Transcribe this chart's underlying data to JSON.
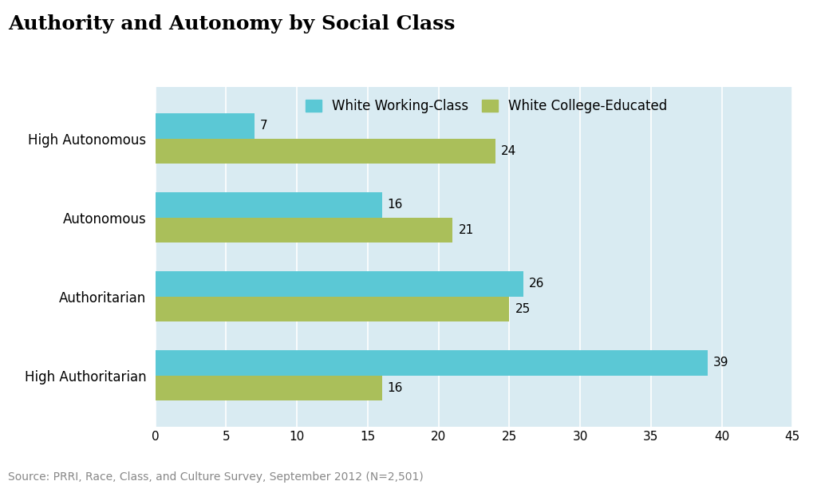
{
  "title": "Authority and Autonomy by Social Class",
  "categories": [
    "High Authoritarian",
    "Authoritarian",
    "Autonomous",
    "High Autonomous"
  ],
  "working_class_values": [
    39,
    26,
    16,
    7
  ],
  "college_educated_values": [
    16,
    25,
    21,
    24
  ],
  "working_class_color": "#5BC8D5",
  "college_educated_color": "#AABF5A",
  "background_color": "#D9EBF2",
  "plot_bg_color": "#D9EBF2",
  "legend_labels": [
    "White Working-Class",
    "White College-Educated"
  ],
  "xlim": [
    0,
    45
  ],
  "xticks": [
    0,
    5,
    10,
    15,
    20,
    25,
    30,
    35,
    40,
    45
  ],
  "source_text": "Source: PRRI, Race, Class, and Culture Survey, September 2012 (N=2,501)",
  "bar_height": 0.32,
  "title_fontsize": 18,
  "label_fontsize": 12,
  "tick_fontsize": 11,
  "value_fontsize": 11,
  "source_fontsize": 10,
  "figure_bg_color": "#FFFFFF",
  "source_color": "#888888",
  "grid_color": "#FFFFFF"
}
